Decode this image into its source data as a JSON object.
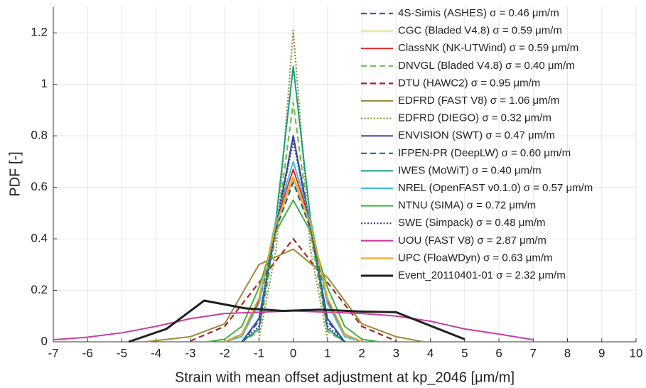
{
  "chart_data": {
    "type": "line",
    "xlabel": "Strain with mean offset adjustment at kp_2046 [μm/m]",
    "ylabel": "PDF [-]",
    "xlim": [
      -7,
      10
    ],
    "ylim": [
      0,
      1.3
    ],
    "xticks": [
      -7,
      -6,
      -5,
      -4,
      -3,
      -2,
      -1,
      0,
      1,
      2,
      3,
      4,
      5,
      6,
      7,
      8,
      9,
      10
    ],
    "yticks": [
      0,
      0.2,
      0.4,
      0.6,
      0.8,
      1,
      1.2
    ],
    "grid": true,
    "legend": "upper right",
    "series": [
      {
        "name": "4S-Simis (ASHES) σ = 0.46 μm/m",
        "color": "#4c4cb0",
        "style": "dashed",
        "x": [
          -1.5,
          -1,
          -0.5,
          0,
          0.5,
          1,
          1.5
        ],
        "values": [
          0,
          0.08,
          0.44,
          0.8,
          0.44,
          0.08,
          0
        ]
      },
      {
        "name": "CGC (Bladed V4.8) σ = 0.59 μm/m",
        "color": "#e8dc8c",
        "style": "solid",
        "x": [
          -2,
          -1.5,
          -1,
          -0.5,
          0,
          0.5,
          1,
          1.5,
          2
        ],
        "values": [
          0,
          0.025,
          0.15,
          0.44,
          0.63,
          0.44,
          0.15,
          0.025,
          0
        ]
      },
      {
        "name": "ClassNK (NK-UTWind) σ = 0.59 μm/m",
        "color": "#d92a2a",
        "style": "solid",
        "x": [
          -2,
          -1.5,
          -1,
          -0.5,
          0,
          0.5,
          1,
          1.5,
          2
        ],
        "values": [
          0,
          0.03,
          0.16,
          0.47,
          0.67,
          0.47,
          0.16,
          0.03,
          0
        ]
      },
      {
        "name": "DNVGL (Bladed V4.8) σ = 0.40 μm/m",
        "color": "#6cc04a",
        "style": "dashed",
        "x": [
          -1.5,
          -1,
          -0.5,
          0,
          0.5,
          1,
          1.5
        ],
        "values": [
          0,
          0.04,
          0.42,
          0.93,
          0.42,
          0.04,
          0
        ]
      },
      {
        "name": "DTU (HAWC2) σ = 0.95 μm/m",
        "color": "#a0282a",
        "style": "dashed",
        "x": [
          -3,
          -2,
          -1,
          0,
          1,
          2,
          3
        ],
        "values": [
          0.003,
          0.06,
          0.23,
          0.4,
          0.23,
          0.06,
          0.003
        ]
      },
      {
        "name": "EDFRD (FAST V8) σ = 1.06 μm/m",
        "color": "#9c8a3a",
        "style": "solid",
        "x": [
          -4.3,
          -3,
          -2,
          -1,
          0,
          1,
          2,
          3,
          3.8
        ],
        "values": [
          0,
          0.02,
          0.07,
          0.3,
          0.36,
          0.25,
          0.07,
          0.02,
          0
        ]
      },
      {
        "name": "EDFRD (DIEGO) σ = 0.32 μm/m",
        "color": "#9c8a3a",
        "style": "dotted",
        "x": [
          -1,
          -0.5,
          0,
          0.5,
          1
        ],
        "values": [
          0.01,
          0.36,
          1.21,
          0.36,
          0.01
        ]
      },
      {
        "name": "ENVISION (SWT) σ = 0.47 μm/m",
        "color": "#3c4ca0",
        "style": "solid",
        "x": [
          -1.5,
          -1,
          -0.5,
          0,
          0.5,
          1,
          1.5
        ],
        "values": [
          0,
          0.09,
          0.45,
          0.8,
          0.45,
          0.09,
          0
        ]
      },
      {
        "name": "IFPEN-PR (DeepLW) σ = 0.60 μm/m",
        "color": "#1a6a80",
        "style": "dashed",
        "x": [
          -2,
          -1.5,
          -1,
          -0.5,
          0,
          0.5,
          1,
          1.5,
          2
        ],
        "values": [
          0,
          0.03,
          0.15,
          0.44,
          0.62,
          0.44,
          0.15,
          0.03,
          0
        ]
      },
      {
        "name": "IWES (MoWiT) σ = 0.40 μm/m",
        "color": "#17a07a",
        "style": "solid",
        "x": [
          -1.5,
          -1,
          -0.5,
          0,
          0.5,
          1,
          1.5
        ],
        "values": [
          0,
          0.05,
          0.48,
          1.07,
          0.48,
          0.05,
          0
        ]
      },
      {
        "name": "NREL (OpenFAST v0.1.0) σ = 0.57 μm/m",
        "color": "#40c0e0",
        "style": "solid",
        "x": [
          -2,
          -1.5,
          -1,
          -0.5,
          0,
          0.5,
          1,
          1.5,
          2
        ],
        "values": [
          0,
          0.02,
          0.15,
          0.48,
          0.7,
          0.48,
          0.15,
          0.02,
          0
        ]
      },
      {
        "name": "NTNU (SIMA) σ = 0.72 μm/m",
        "color": "#40b040",
        "style": "solid",
        "x": [
          -2.5,
          -2,
          -1.5,
          -1,
          -0.5,
          0,
          0.5,
          1,
          1.5,
          2,
          2.5
        ],
        "values": [
          0,
          0.01,
          0.06,
          0.21,
          0.43,
          0.55,
          0.43,
          0.21,
          0.06,
          0.01,
          0
        ]
      },
      {
        "name": "SWE (Simpack) σ = 0.48 μm/m",
        "color": "#3a3a8a",
        "style": "dotted",
        "x": [
          -1.5,
          -1,
          -0.5,
          0,
          0.5,
          1,
          1.5
        ],
        "values": [
          0,
          0.06,
          0.45,
          0.78,
          0.45,
          0.06,
          0
        ]
      },
      {
        "name": "UOU (FAST V8) σ = 2.87 μm/m",
        "color": "#c83ca0",
        "style": "solid",
        "x": [
          -7,
          -6,
          -5,
          -4,
          -3,
          -2,
          -1,
          0,
          1,
          2,
          3,
          4,
          5,
          6,
          7
        ],
        "values": [
          0.008,
          0.018,
          0.035,
          0.06,
          0.09,
          0.11,
          0.115,
          0.12,
          0.115,
          0.11,
          0.1,
          0.08,
          0.05,
          0.03,
          0.008
        ]
      },
      {
        "name": "UPC (FloaWDyn) σ = 0.63 μm/m",
        "color": "#f5a020",
        "style": "solid",
        "x": [
          -2,
          -1.5,
          -1,
          -0.5,
          0,
          0.5,
          1,
          1.5,
          2
        ],
        "values": [
          0,
          0.03,
          0.17,
          0.46,
          0.64,
          0.46,
          0.17,
          0.03,
          0
        ]
      },
      {
        "name": "Event_20110401-01 σ = 2.32 μm/m",
        "color": "#202020",
        "style": "thick",
        "x": [
          -4.8,
          -3.7,
          -2.6,
          -1.4,
          -0.3,
          0.8,
          1.9,
          3,
          5
        ],
        "values": [
          0,
          0.05,
          0.16,
          0.13,
          0.12,
          0.125,
          0.118,
          0.115,
          0.01
        ]
      }
    ]
  }
}
